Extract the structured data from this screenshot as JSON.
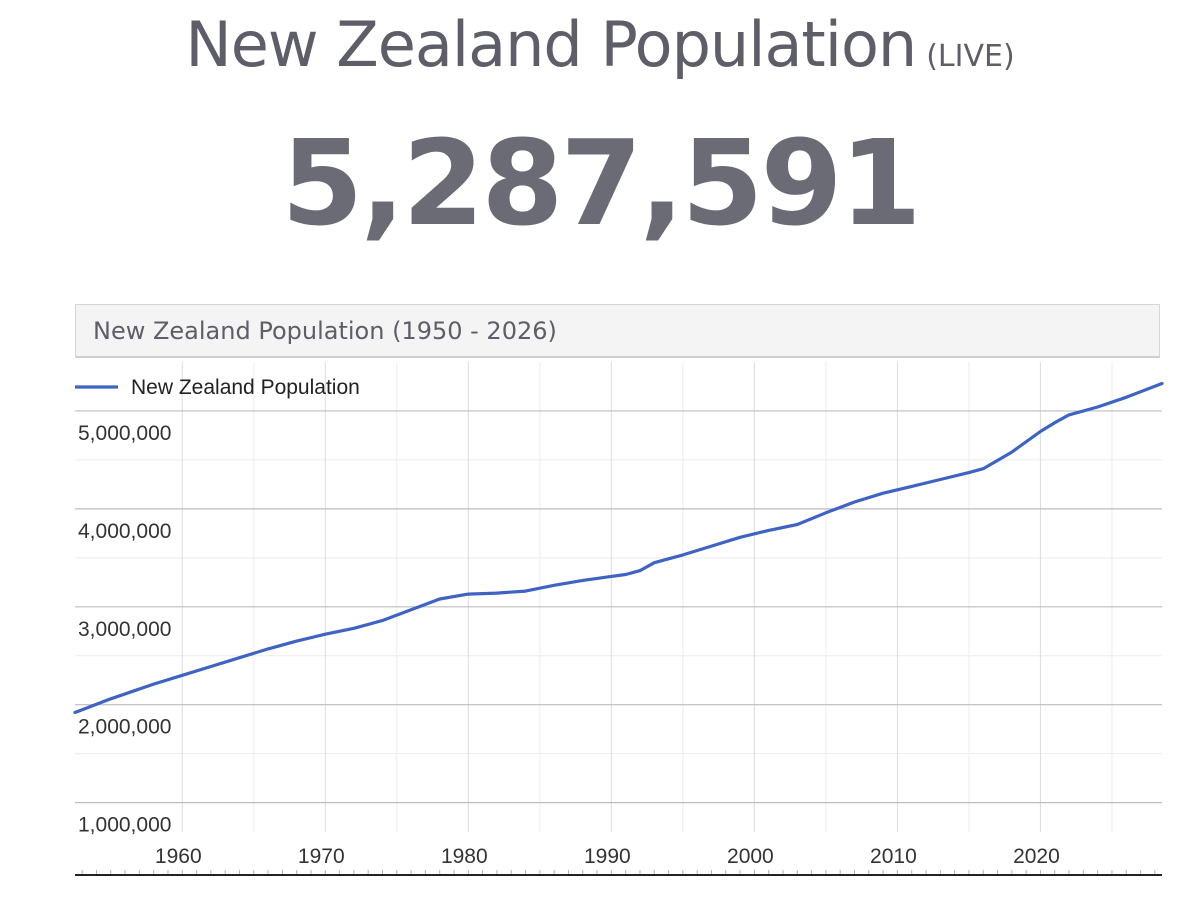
{
  "header": {
    "title": "New Zealand Population",
    "live_badge": "(LIVE)"
  },
  "counter": {
    "value": "5,287,591"
  },
  "chart_panel": {
    "title": "New Zealand Population (1950 - 2026)"
  },
  "colors": {
    "series_line": "#3f63c4",
    "text": "#5e5e68"
  },
  "chart_data": {
    "type": "line",
    "title": "New Zealand Population (1950 - 2026)",
    "legend": {
      "position": "top-left"
    },
    "grid": true,
    "xlim": [
      1952.5,
      2028.5
    ],
    "ylim": [
      700000,
      5500000
    ],
    "x_ticks": [
      1960,
      1970,
      1980,
      1990,
      2000,
      2010,
      2020
    ],
    "x_tick_labels": [
      "1960",
      "1970",
      "1980",
      "1990",
      "2000",
      "2010",
      "2020"
    ],
    "y_ticks": [
      1000000,
      2000000,
      3000000,
      4000000,
      5000000
    ],
    "y_tick_labels": [
      "1,000,000",
      "2,000,000",
      "3,000,000",
      "4,000,000",
      "5,000,000"
    ],
    "series": [
      {
        "name": "New Zealand Population",
        "x": [
          1952.5,
          1955,
          1958,
          1960,
          1962,
          1964,
          1966,
          1968,
          1970,
          1972,
          1974,
          1976,
          1978,
          1980,
          1982,
          1984,
          1986,
          1988,
          1990,
          1991,
          1992,
          1993,
          1995,
          1997,
          1999,
          2001,
          2003,
          2005,
          2007,
          2009,
          2011,
          2013,
          2015,
          2016,
          2018,
          2020,
          2021,
          2022,
          2024,
          2026,
          2028.5
        ],
        "y": [
          1920000,
          2060000,
          2210000,
          2300000,
          2390000,
          2480000,
          2570000,
          2650000,
          2720000,
          2780000,
          2860000,
          2970000,
          3080000,
          3130000,
          3140000,
          3160000,
          3220000,
          3270000,
          3310000,
          3330000,
          3370000,
          3450000,
          3530000,
          3620000,
          3710000,
          3780000,
          3840000,
          3960000,
          4070000,
          4160000,
          4230000,
          4300000,
          4370000,
          4410000,
          4580000,
          4790000,
          4880000,
          4960000,
          5040000,
          5140000,
          5280000
        ]
      }
    ]
  }
}
